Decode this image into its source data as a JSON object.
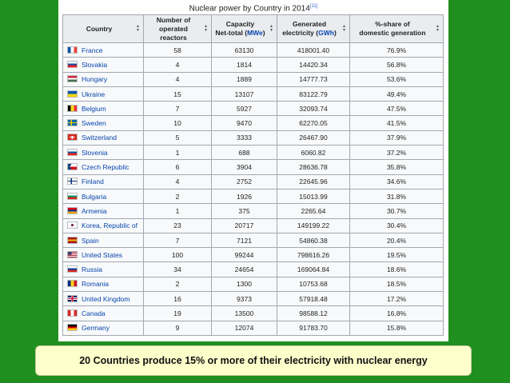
{
  "table": {
    "caption": "Nuclear power by Country in 2014",
    "caption_ref": "[11]",
    "headers": [
      {
        "line1": "Country",
        "line2": "",
        "unit": "",
        "tail": ""
      },
      {
        "line1": "Number of",
        "line2": "operated reactors",
        "unit": "",
        "tail": ""
      },
      {
        "line1": "Capacity",
        "line2": "Net-total (",
        "unit": "MWe",
        "tail": ")"
      },
      {
        "line1": "Generated",
        "line2": "electricity (",
        "unit": "GWh",
        "tail": ")"
      },
      {
        "line1": "%-share of",
        "line2": "domestic generation",
        "unit": "",
        "tail": ""
      }
    ],
    "rows": [
      {
        "country": "France",
        "flag": [
          "#0055a4",
          "#ffffff",
          "#ef4135"
        ],
        "orient": "v",
        "reactors": "58",
        "capacity": "63130",
        "generated": "418001.40",
        "share": "76.9%"
      },
      {
        "country": "Slovakia",
        "flag": [
          "#ffffff",
          "#0b4ea2",
          "#ee1c25"
        ],
        "orient": "h",
        "reactors": "4",
        "capacity": "1814",
        "generated": "14420.34",
        "share": "56.8%"
      },
      {
        "country": "Hungary",
        "flag": [
          "#ce2939",
          "#ffffff",
          "#477050"
        ],
        "orient": "h",
        "reactors": "4",
        "capacity": "1889",
        "generated": "14777.73",
        "share": "53.6%"
      },
      {
        "country": "Ukraine",
        "flag": [
          "#0057b7",
          "#ffd700"
        ],
        "orient": "h",
        "reactors": "15",
        "capacity": "13107",
        "generated": "83122.79",
        "share": "49.4%"
      },
      {
        "country": "Belgium",
        "flag": [
          "#000000",
          "#fdda24",
          "#ef3340"
        ],
        "orient": "v",
        "reactors": "7",
        "capacity": "5927",
        "generated": "32093.74",
        "share": "47.5%"
      },
      {
        "country": "Sweden",
        "flag": [
          "#006aa7",
          "#fecc00"
        ],
        "orient": "cross",
        "reactors": "10",
        "capacity": "9470",
        "generated": "62270.05",
        "share": "41.5%"
      },
      {
        "country": "Switzerland",
        "flag": [
          "#d52b1e",
          "#ffffff"
        ],
        "orient": "plus",
        "reactors": "5",
        "capacity": "3333",
        "generated": "26467.90",
        "share": "37.9%"
      },
      {
        "country": "Slovenia",
        "flag": [
          "#ffffff",
          "#005da4",
          "#ed1c24"
        ],
        "orient": "h",
        "reactors": "1",
        "capacity": "688",
        "generated": "6060.82",
        "share": "37.2%"
      },
      {
        "country": "Czech Republic",
        "flag": [
          "#ffffff",
          "#d7141a",
          "#11457e"
        ],
        "orient": "tri",
        "reactors": "6",
        "capacity": "3904",
        "generated": "28636.78",
        "share": "35.8%"
      },
      {
        "country": "Finland",
        "flag": [
          "#ffffff",
          "#002f6c"
        ],
        "orient": "cross",
        "reactors": "4",
        "capacity": "2752",
        "generated": "22645.96",
        "share": "34.6%"
      },
      {
        "country": "Bulgaria",
        "flag": [
          "#ffffff",
          "#00966e",
          "#d62612"
        ],
        "orient": "h",
        "reactors": "2",
        "capacity": "1926",
        "generated": "15013.99",
        "share": "31.8%"
      },
      {
        "country": "Armenia",
        "flag": [
          "#d90012",
          "#0033a0",
          "#f2a800"
        ],
        "orient": "h",
        "reactors": "1",
        "capacity": "375",
        "generated": "2265.64",
        "share": "30.7%"
      },
      {
        "country": "Korea, Republic of",
        "flag": [
          "#ffffff",
          "#c60c30",
          "#003478"
        ],
        "orient": "korea",
        "reactors": "23",
        "capacity": "20717",
        "generated": "149199.22",
        "share": "30.4%"
      },
      {
        "country": "Spain",
        "flag": [
          "#aa151b",
          "#f1bf00",
          "#aa151b"
        ],
        "orient": "h",
        "reactors": "7",
        "capacity": "7121",
        "generated": "54860.38",
        "share": "20.4%"
      },
      {
        "country": "United States",
        "flag": [
          "#b22234",
          "#ffffff",
          "#3c3b6e"
        ],
        "orient": "us",
        "reactors": "100",
        "capacity": "99244",
        "generated": "798616.26",
        "share": "19.5%"
      },
      {
        "country": "Russia",
        "flag": [
          "#ffffff",
          "#0039a6",
          "#d52b1e"
        ],
        "orient": "h",
        "reactors": "34",
        "capacity": "24654",
        "generated": "169064.84",
        "share": "18.6%"
      },
      {
        "country": "Romania",
        "flag": [
          "#002b7f",
          "#fcd116",
          "#ce1126"
        ],
        "orient": "v",
        "reactors": "2",
        "capacity": "1300",
        "generated": "10753.68",
        "share": "18.5%"
      },
      {
        "country": "United Kingdom",
        "flag": [
          "#012169",
          "#ffffff",
          "#c8102e"
        ],
        "orient": "uk",
        "reactors": "16",
        "capacity": "9373",
        "generated": "57918.48",
        "share": "17.2%"
      },
      {
        "country": "Canada",
        "flag": [
          "#d52b1e",
          "#ffffff",
          "#d52b1e"
        ],
        "orient": "v",
        "reactors": "19",
        "capacity": "13500",
        "generated": "98588.12",
        "share": "16.8%"
      },
      {
        "country": "Germany",
        "flag": [
          "#000000",
          "#dd0000",
          "#ffce00"
        ],
        "orient": "h",
        "reactors": "9",
        "capacity": "12074",
        "generated": "91783.70",
        "share": "15.8%"
      }
    ]
  },
  "banner": {
    "text": "20 Countries produce 15% or more of their electricity with nuclear energy"
  }
}
